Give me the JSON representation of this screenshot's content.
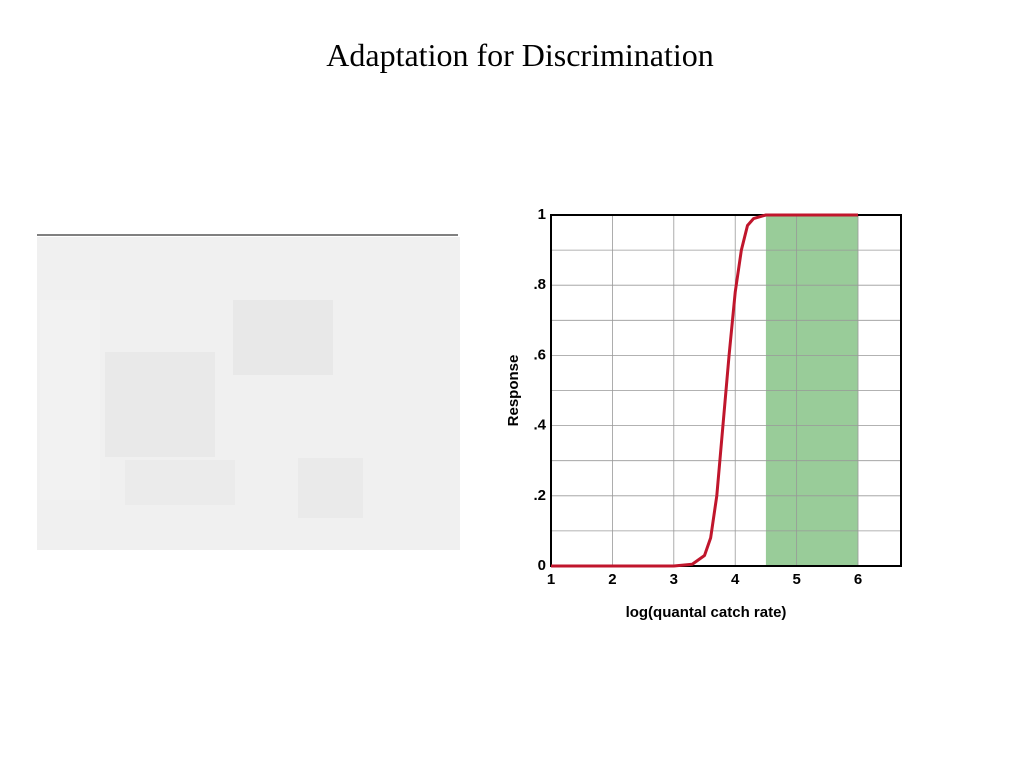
{
  "chart_data": {
    "type": "line",
    "title": "Adaptation for Discrimination",
    "x_label": "log(quantal catch rate)",
    "y_label": "Response",
    "x": [
      1,
      2,
      3,
      3.3,
      3.5,
      3.6,
      3.7,
      3.8,
      3.9,
      4.0,
      4.1,
      4.2,
      4.3,
      4.5,
      5,
      6
    ],
    "series": [
      {
        "color": "#c0162c",
        "values": [
          0,
          0,
          0,
          0.005,
          0.03,
          0.08,
          0.2,
          0.4,
          0.6,
          0.78,
          0.9,
          0.97,
          0.99,
          1,
          1,
          1
        ]
      }
    ],
    "shaded_range": {
      "x": [
        4.5,
        6
      ],
      "color": "#99cc99"
    },
    "xlim": [
      1,
      6.7
    ],
    "ylim": [
      0,
      1
    ],
    "xticks": [
      1,
      2,
      3,
      4,
      5,
      6
    ],
    "yticks": [
      0,
      {
        "value": 0.2,
        "label": ".2"
      },
      {
        "value": 0.4,
        "label": ".4"
      },
      {
        "value": 0.6,
        "label": ".6"
      },
      {
        "value": 0.8,
        "label": ".8"
      },
      1
    ],
    "y_minor_gridlines": [
      0.1,
      0.3,
      0.5,
      0.7,
      0.9
    ],
    "grid": true
  }
}
